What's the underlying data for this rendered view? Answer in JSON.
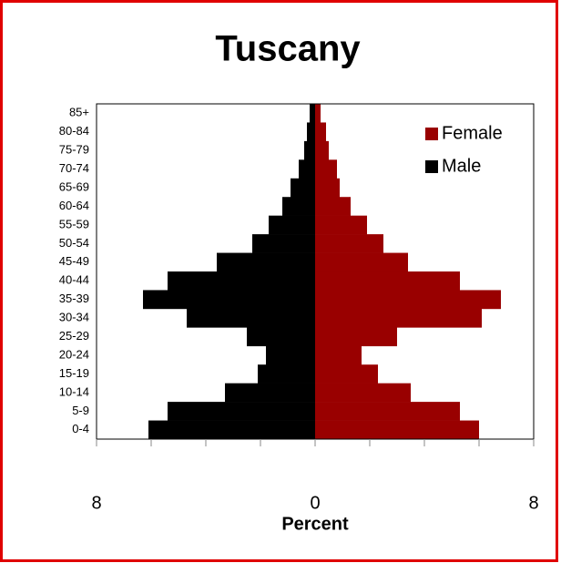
{
  "chart_data": {
    "type": "pyramid",
    "title": "Tuscany",
    "x_label": "Percent",
    "categories": [
      "0-4",
      "5-9",
      "10-14",
      "15-19",
      "20-24",
      "25-29",
      "30-34",
      "35-39",
      "40-44",
      "45-49",
      "50-54",
      "55-59",
      "60-64",
      "65-69",
      "70-74",
      "75-79",
      "80-84",
      "85+"
    ],
    "series": [
      {
        "name": "Female",
        "color": "#990000",
        "side": "right",
        "values": [
          6.0,
          5.3,
          3.5,
          2.3,
          1.7,
          3.0,
          6.1,
          6.8,
          5.3,
          3.4,
          2.5,
          1.9,
          1.3,
          0.9,
          0.8,
          0.5,
          0.4,
          0.2
        ]
      },
      {
        "name": "Male",
        "color": "#000000",
        "side": "left",
        "values": [
          6.1,
          5.4,
          3.3,
          2.1,
          1.8,
          2.5,
          4.7,
          6.3,
          5.4,
          3.6,
          2.3,
          1.7,
          1.2,
          0.9,
          0.6,
          0.4,
          0.3,
          0.2
        ]
      }
    ],
    "xlim": [
      -8,
      8
    ],
    "xticks": [
      {
        "value": -8,
        "label": "8"
      },
      0,
      8
    ],
    "xminorticks": [
      -6,
      -4,
      -2,
      2,
      4,
      6
    ],
    "legend": "upper right"
  }
}
